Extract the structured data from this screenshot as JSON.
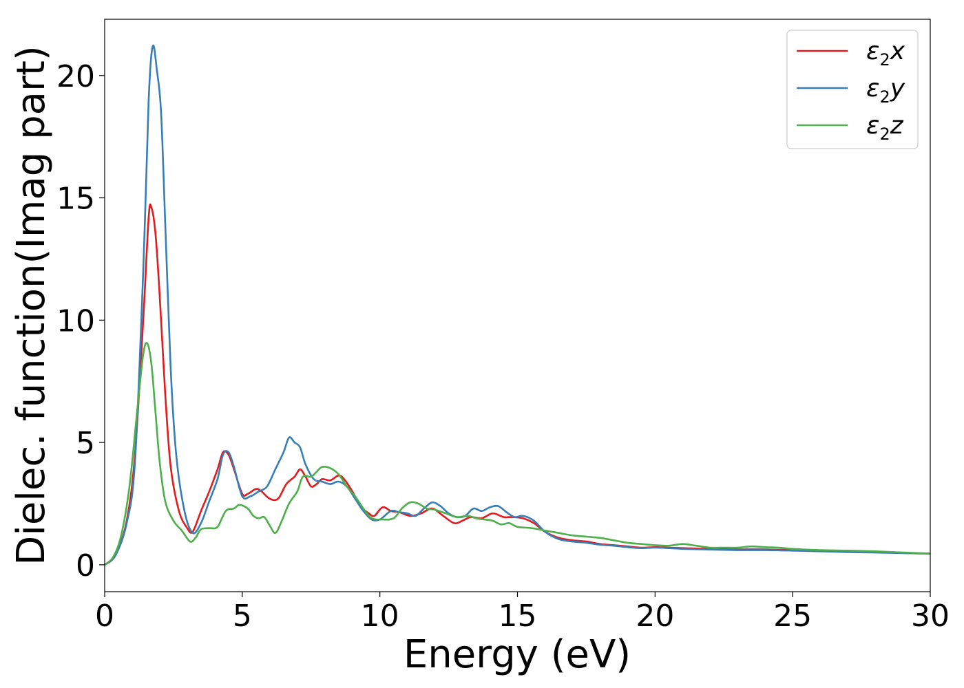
{
  "chart_data": {
    "type": "line",
    "title": "",
    "xlabel": "Energy (eV)",
    "ylabel": "Dielec. function(Imag part)",
    "xlim": [
      0,
      30
    ],
    "ylim": [
      -1.1,
      22.3
    ],
    "xticks": [
      0,
      5,
      10,
      15,
      20,
      25,
      30
    ],
    "yticks": [
      0,
      5,
      10,
      15,
      20
    ],
    "grid": false,
    "legend_position": "top-right",
    "series": [
      {
        "name": "ε2x",
        "label_base": "ε",
        "label_sub": "2",
        "label_tail": "x",
        "color": "#e41a1c",
        "points": [
          [
            0,
            0
          ],
          [
            0.4,
            0.4
          ],
          [
            0.8,
            1.8
          ],
          [
            1.1,
            4.5
          ],
          [
            1.4,
            10
          ],
          [
            1.6,
            14.2
          ],
          [
            1.7,
            14.6
          ],
          [
            1.85,
            13.5
          ],
          [
            2.0,
            11
          ],
          [
            2.2,
            7
          ],
          [
            2.4,
            4
          ],
          [
            2.7,
            2.2
          ],
          [
            3.0,
            1.5
          ],
          [
            3.2,
            1.35
          ],
          [
            3.5,
            2.2
          ],
          [
            3.8,
            3
          ],
          [
            4.1,
            3.9
          ],
          [
            4.3,
            4.6
          ],
          [
            4.5,
            4.5
          ],
          [
            4.7,
            3.9
          ],
          [
            5.0,
            2.9
          ],
          [
            5.2,
            2.9
          ],
          [
            5.5,
            3.1
          ],
          [
            5.7,
            3.0
          ],
          [
            6.0,
            2.7
          ],
          [
            6.3,
            2.7
          ],
          [
            6.6,
            3.3
          ],
          [
            6.9,
            3.6
          ],
          [
            7.1,
            3.9
          ],
          [
            7.3,
            3.6
          ],
          [
            7.5,
            3.2
          ],
          [
            7.7,
            3.3
          ],
          [
            7.9,
            3.5
          ],
          [
            8.2,
            3.45
          ],
          [
            8.5,
            3.65
          ],
          [
            8.7,
            3.5
          ],
          [
            9.0,
            3.0
          ],
          [
            9.3,
            2.4
          ],
          [
            9.6,
            2.1
          ],
          [
            9.8,
            2.0
          ],
          [
            10.1,
            2.35
          ],
          [
            10.4,
            2.2
          ],
          [
            10.7,
            2.15
          ],
          [
            11.1,
            2.0
          ],
          [
            11.5,
            2.1
          ],
          [
            11.9,
            2.3
          ],
          [
            12.3,
            2.0
          ],
          [
            12.7,
            1.7
          ],
          [
            13.0,
            1.8
          ],
          [
            13.3,
            1.95
          ],
          [
            13.7,
            1.9
          ],
          [
            14.1,
            2.1
          ],
          [
            14.5,
            1.95
          ],
          [
            14.8,
            1.95
          ],
          [
            15.2,
            1.9
          ],
          [
            15.6,
            1.7
          ],
          [
            16.0,
            1.35
          ],
          [
            16.5,
            1.1
          ],
          [
            17.0,
            1.0
          ],
          [
            17.5,
            0.95
          ],
          [
            18.0,
            0.85
          ],
          [
            18.5,
            0.8
          ],
          [
            19.0,
            0.75
          ],
          [
            19.5,
            0.7
          ],
          [
            20.0,
            0.72
          ],
          [
            20.5,
            0.7
          ],
          [
            21.0,
            0.68
          ],
          [
            22.0,
            0.65
          ],
          [
            23.0,
            0.63
          ],
          [
            24.0,
            0.63
          ],
          [
            25.0,
            0.6
          ],
          [
            26.0,
            0.58
          ],
          [
            27.0,
            0.55
          ],
          [
            28.0,
            0.52
          ],
          [
            29.0,
            0.48
          ],
          [
            30.0,
            0.46
          ]
        ]
      },
      {
        "name": "ε2y",
        "label_base": "ε",
        "label_sub": "2",
        "label_tail": "y",
        "color": "#377eb8",
        "points": [
          [
            0,
            0
          ],
          [
            0.4,
            0.4
          ],
          [
            0.8,
            1.7
          ],
          [
            1.1,
            4.2
          ],
          [
            1.4,
            12
          ],
          [
            1.6,
            19
          ],
          [
            1.75,
            21.2
          ],
          [
            1.9,
            20.2
          ],
          [
            2.05,
            18.5
          ],
          [
            2.2,
            14
          ],
          [
            2.4,
            8
          ],
          [
            2.6,
            4.5
          ],
          [
            2.9,
            2.2
          ],
          [
            3.2,
            1.3
          ],
          [
            3.5,
            1.7
          ],
          [
            3.8,
            2.6
          ],
          [
            4.1,
            3.5
          ],
          [
            4.3,
            4.5
          ],
          [
            4.5,
            4.6
          ],
          [
            4.7,
            4.0
          ],
          [
            5.0,
            2.8
          ],
          [
            5.3,
            2.8
          ],
          [
            5.6,
            3.0
          ],
          [
            5.9,
            3.2
          ],
          [
            6.2,
            3.9
          ],
          [
            6.5,
            4.6
          ],
          [
            6.7,
            5.2
          ],
          [
            6.9,
            5.0
          ],
          [
            7.1,
            4.8
          ],
          [
            7.3,
            4.1
          ],
          [
            7.6,
            3.5
          ],
          [
            7.9,
            3.4
          ],
          [
            8.2,
            3.3
          ],
          [
            8.5,
            3.4
          ],
          [
            8.8,
            3.2
          ],
          [
            9.1,
            2.7
          ],
          [
            9.4,
            2.2
          ],
          [
            9.7,
            1.85
          ],
          [
            10.0,
            1.85
          ],
          [
            10.4,
            2.2
          ],
          [
            10.7,
            2.15
          ],
          [
            11.0,
            2.1
          ],
          [
            11.3,
            2.0
          ],
          [
            11.6,
            2.3
          ],
          [
            11.9,
            2.55
          ],
          [
            12.2,
            2.4
          ],
          [
            12.5,
            2.1
          ],
          [
            12.8,
            1.95
          ],
          [
            13.1,
            2.0
          ],
          [
            13.4,
            2.3
          ],
          [
            13.7,
            2.2
          ],
          [
            14.0,
            2.35
          ],
          [
            14.3,
            2.4
          ],
          [
            14.6,
            2.15
          ],
          [
            14.9,
            1.95
          ],
          [
            15.2,
            2.0
          ],
          [
            15.6,
            1.8
          ],
          [
            16.0,
            1.35
          ],
          [
            16.5,
            1.05
          ],
          [
            17.0,
            0.95
          ],
          [
            17.5,
            0.9
          ],
          [
            18.0,
            0.82
          ],
          [
            18.5,
            0.78
          ],
          [
            19.0,
            0.72
          ],
          [
            19.5,
            0.68
          ],
          [
            20.0,
            0.7
          ],
          [
            20.5,
            0.68
          ],
          [
            21.0,
            0.65
          ],
          [
            22.0,
            0.62
          ],
          [
            23.0,
            0.6
          ],
          [
            24.0,
            0.6
          ],
          [
            25.0,
            0.58
          ],
          [
            26.0,
            0.55
          ],
          [
            27.0,
            0.52
          ],
          [
            28.0,
            0.5
          ],
          [
            29.0,
            0.48
          ],
          [
            30.0,
            0.45
          ]
        ]
      },
      {
        "name": "ε2z",
        "label_base": "ε",
        "label_sub": "2",
        "label_tail": "z",
        "color": "#4daf4a",
        "points": [
          [
            0,
            0
          ],
          [
            0.3,
            0.3
          ],
          [
            0.6,
            1.2
          ],
          [
            0.9,
            3.2
          ],
          [
            1.2,
            6.5
          ],
          [
            1.4,
            8.6
          ],
          [
            1.55,
            9.05
          ],
          [
            1.7,
            8.2
          ],
          [
            1.85,
            6.2
          ],
          [
            2.0,
            4.2
          ],
          [
            2.2,
            2.6
          ],
          [
            2.5,
            1.8
          ],
          [
            2.8,
            1.4
          ],
          [
            3.1,
            0.95
          ],
          [
            3.3,
            1.1
          ],
          [
            3.5,
            1.45
          ],
          [
            3.8,
            1.5
          ],
          [
            4.1,
            1.55
          ],
          [
            4.4,
            2.2
          ],
          [
            4.7,
            2.3
          ],
          [
            4.9,
            2.45
          ],
          [
            5.2,
            2.3
          ],
          [
            5.4,
            2.0
          ],
          [
            5.6,
            1.9
          ],
          [
            5.8,
            1.95
          ],
          [
            6.0,
            1.6
          ],
          [
            6.2,
            1.3
          ],
          [
            6.4,
            1.7
          ],
          [
            6.7,
            2.5
          ],
          [
            7.0,
            3.0
          ],
          [
            7.2,
            3.6
          ],
          [
            7.5,
            3.6
          ],
          [
            7.7,
            3.8
          ],
          [
            7.9,
            4.0
          ],
          [
            8.2,
            3.95
          ],
          [
            8.5,
            3.7
          ],
          [
            8.8,
            3.2
          ],
          [
            9.1,
            2.8
          ],
          [
            9.4,
            2.3
          ],
          [
            9.7,
            1.9
          ],
          [
            10.1,
            1.85
          ],
          [
            10.5,
            1.9
          ],
          [
            10.8,
            2.3
          ],
          [
            11.1,
            2.55
          ],
          [
            11.4,
            2.5
          ],
          [
            11.7,
            2.3
          ],
          [
            12.0,
            2.25
          ],
          [
            12.4,
            2.1
          ],
          [
            12.8,
            1.95
          ],
          [
            13.2,
            2.0
          ],
          [
            13.5,
            1.9
          ],
          [
            13.8,
            1.85
          ],
          [
            14.1,
            1.8
          ],
          [
            14.4,
            1.65
          ],
          [
            14.7,
            1.7
          ],
          [
            15.0,
            1.55
          ],
          [
            15.5,
            1.5
          ],
          [
            16.0,
            1.4
          ],
          [
            16.5,
            1.3
          ],
          [
            17.0,
            1.2
          ],
          [
            17.5,
            1.15
          ],
          [
            18.0,
            1.1
          ],
          [
            18.5,
            1.0
          ],
          [
            19.0,
            0.9
          ],
          [
            19.5,
            0.85
          ],
          [
            20.0,
            0.8
          ],
          [
            20.5,
            0.78
          ],
          [
            21.0,
            0.85
          ],
          [
            21.5,
            0.78
          ],
          [
            22.0,
            0.7
          ],
          [
            22.5,
            0.7
          ],
          [
            23.0,
            0.7
          ],
          [
            23.5,
            0.75
          ],
          [
            24.0,
            0.72
          ],
          [
            24.5,
            0.7
          ],
          [
            25.0,
            0.65
          ],
          [
            26.0,
            0.6
          ],
          [
            27.0,
            0.58
          ],
          [
            28.0,
            0.55
          ],
          [
            29.0,
            0.5
          ],
          [
            30.0,
            0.46
          ]
        ]
      }
    ]
  }
}
